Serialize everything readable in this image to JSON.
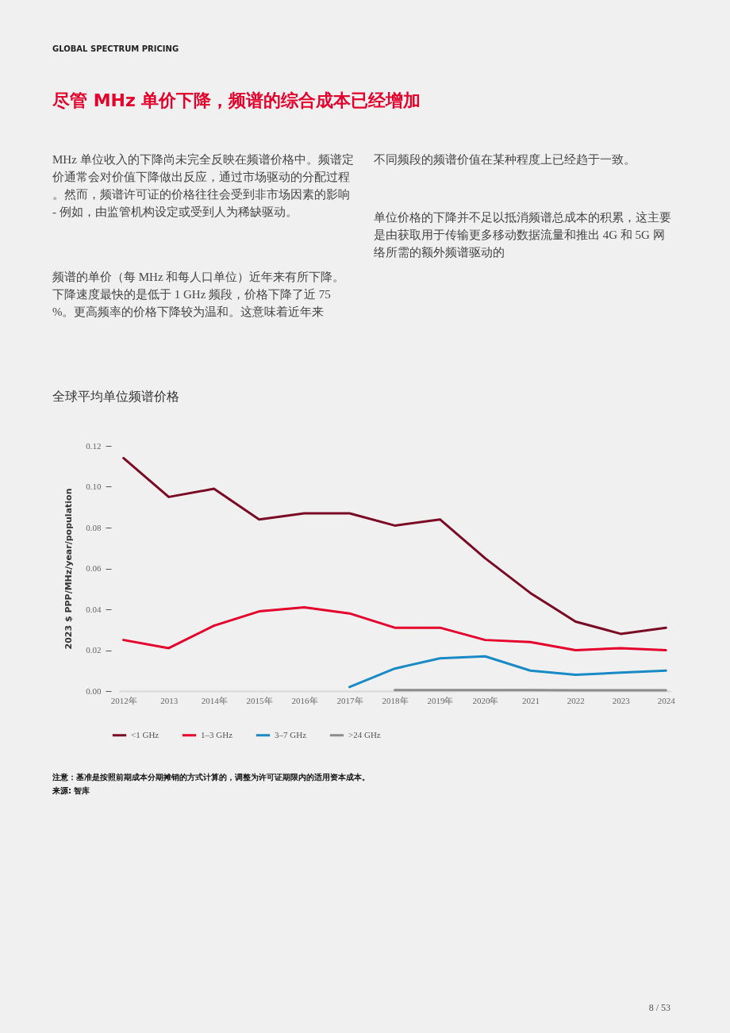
{
  "chart_data": {
    "type": "line",
    "title": "尽管 MHz 单价下降，频谱的综合成本已经增加",
    "subtitle": "全球平均单位频谱价格",
    "ylabel": "2023 $ PPP/MHz/year/population",
    "categories": [
      "2012年",
      "2013",
      "2014年",
      "2015年",
      "2016年",
      "2017年",
      "2018年",
      "2019年",
      "2020年",
      "2021",
      "2022",
      "2023",
      "2024"
    ],
    "series": [
      {
        "name": "<1 GHz",
        "color": "#7a0a24",
        "values": [
          0.114,
          0.095,
          0.099,
          0.084,
          0.087,
          0.087,
          0.081,
          0.084,
          0.065,
          0.048,
          0.034,
          0.028,
          0.031
        ]
      },
      {
        "name": "1–3 GHz",
        "color": "#e4002b",
        "values": [
          0.025,
          0.021,
          0.032,
          0.039,
          0.041,
          0.038,
          0.031,
          0.031,
          0.025,
          0.024,
          0.02,
          0.021,
          0.02
        ]
      },
      {
        "name": "3–7 GHz",
        "color": "#1a8ac6",
        "values": [
          null,
          null,
          null,
          null,
          null,
          0.002,
          0.011,
          0.016,
          0.017,
          0.01,
          0.008,
          0.009,
          0.01
        ]
      },
      {
        "name": ">24 GHz",
        "color": "#8c8c8c",
        "values": [
          null,
          null,
          null,
          null,
          null,
          null,
          0.0005,
          0.0005,
          0.0005,
          0.0005,
          0.0004,
          0.0004,
          0.0004
        ]
      }
    ],
    "ylim": [
      0,
      0.12
    ],
    "yticks": [
      {
        "value": 0,
        "label": "0.00"
      },
      {
        "value": 0.02,
        "label": "0.02"
      },
      {
        "value": 0.04,
        "label": "0.04"
      },
      {
        "value": 0.06,
        "label": "0.06"
      },
      {
        "value": 0.08,
        "label": "0.08"
      },
      {
        "value": 0.1,
        "label": "0.10"
      },
      {
        "value": 0.12,
        "label": "0.12"
      }
    ],
    "grid": false,
    "legend": "bottom left",
    "marker": "none",
    "line_style": "solid",
    "annotations": [
      "GLOBAL SPECTRUM PRICING",
      "MHz 单位收入的下降尚未完全反映在频谱价格中。频谱定价通常会对价值下降做出反应，通过市场驱动的分配过程。然而，频谱许可证的价格往往会受到非市场因素的影响 - 例如，由监管机构设定或受到人为稀缺驱动。",
      "频谱的单价（每 MHz 和每人口单位）近年来有所下降。下降速度最快的是低于 1 GHz 频段，价格下降了近 75%。更高频率的价格下降较为温和。这意味着近年来",
      "不同频段的频谱价值在某种程度上已经趋于一致。",
      "单位价格的下降并不足以抵消频谱总成本的积累，这主要是由获取用于传输更多移动数据流量和推出 4G 和 5G 网络所需的额外频谱驱动的",
      "注意：基准是按照前期成本分期摊销的方式计算的，调整为许可证期限内的适用资本成本。",
      "来源: 智库",
      "8 / 53"
    ]
  }
}
